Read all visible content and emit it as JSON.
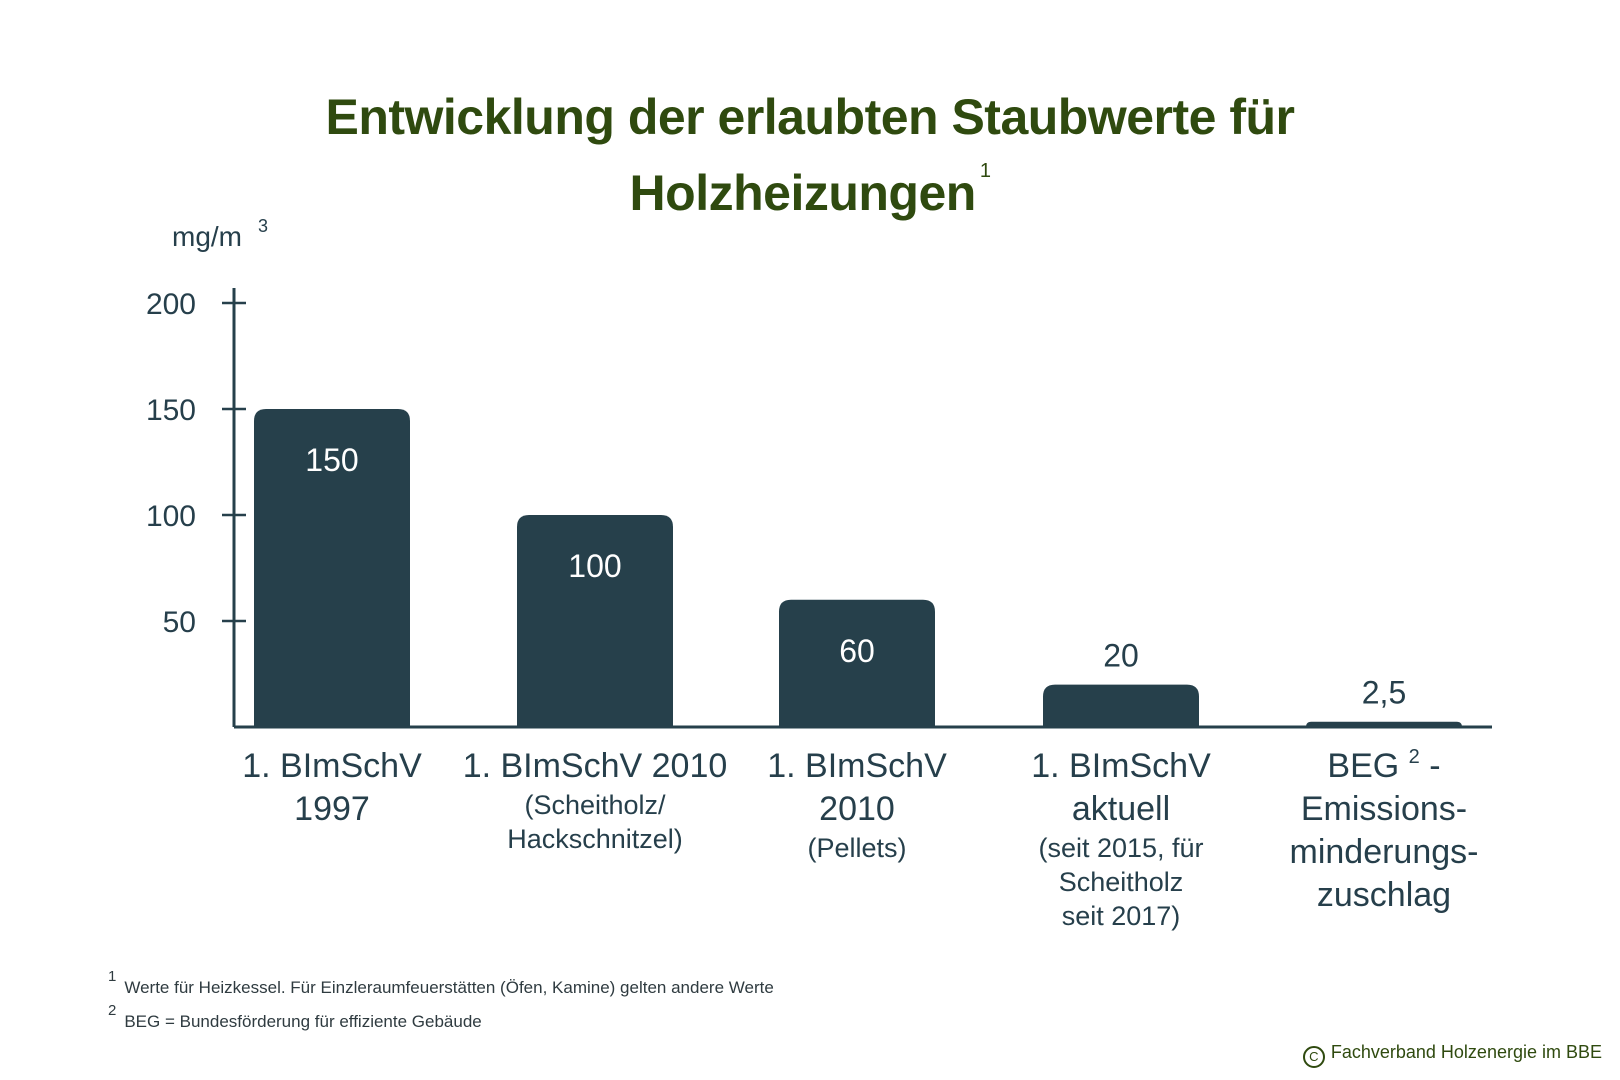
{
  "title": {
    "line1": "Entwicklung der erlaubten Staubwerte für",
    "line2": "Holzheizungen",
    "footnote_ref": "1"
  },
  "chart_data": {
    "type": "bar",
    "title": "Entwicklung der erlaubten Staubwerte für Holzheizungen",
    "ylabel": "mg/m",
    "ylabel_superscript": "3",
    "xlabel": "",
    "ylim": [
      0,
      200
    ],
    "yticks": [
      50,
      100,
      150,
      200
    ],
    "grid": false,
    "legend": "none",
    "bar_color": "#26404b",
    "categories": [
      {
        "main": [
          "1. BImSchV",
          "1997"
        ],
        "sub": []
      },
      {
        "main": [
          "1. BImSchV 2010"
        ],
        "sub": [
          "(Scheitholz/",
          "Hackschnitzel)"
        ]
      },
      {
        "main": [
          "1. BImSchV",
          "2010"
        ],
        "sub": [
          "(Pellets)"
        ]
      },
      {
        "main": [
          "1. BImSchV",
          "aktuell"
        ],
        "sub": [
          "(seit 2015, für",
          "Scheitholz",
          "seit 2017)"
        ]
      },
      {
        "main": [
          "BEG",
          "Emissions-",
          "minderungs-",
          "zuschlag"
        ],
        "sub": [],
        "main_superscript": "2",
        "main_suffix": " -"
      }
    ],
    "values": [
      150,
      100,
      60,
      20,
      2.5
    ],
    "value_labels": [
      "150",
      "100",
      "60",
      "20",
      "2,5"
    ]
  },
  "footnotes": [
    {
      "num": "1",
      "text": "Werte für Heizkessel. Für Einzleraumfeuerstätten (Öfen, Kamine) gelten andere Werte"
    },
    {
      "num": "2",
      "text": "BEG = Bundesförderung für effiziente Gebäude"
    }
  ],
  "copyright": {
    "symbol": "C",
    "text": "Fachverband Holzenergie im BBE"
  },
  "colors": {
    "title": "#2f4a0f",
    "bars": "#26404b",
    "axis": "#26404b",
    "text": "#263f4b"
  }
}
